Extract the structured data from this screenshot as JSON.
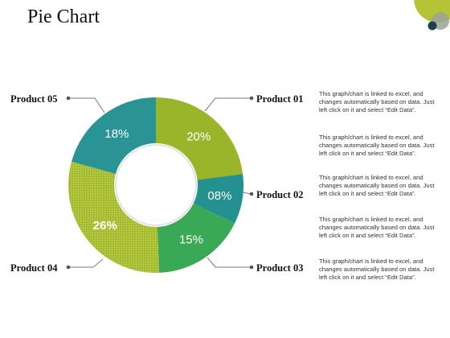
{
  "title": "Pie Chart",
  "chart_data": {
    "type": "pie",
    "variant": "donut",
    "categories": [
      "Product 01",
      "Product 02",
      "Product 03",
      "Product 04",
      "Product 05"
    ],
    "values": [
      20,
      8,
      15,
      26,
      18
    ],
    "value_labels": [
      "20%",
      "08%",
      "15%",
      "26%",
      "18%"
    ],
    "colors": [
      "#9bb52a",
      "#24908f",
      "#3aa956",
      "#a6ba2e",
      "#2a9494"
    ],
    "legend": "callouts"
  },
  "descriptions": [
    "This graph/chart is linked to excel, and changes automatically based on data. Just left click on it and select “Edit Data”.",
    "This graph/chart is linked to excel, and changes automatically based on data. Just left click on it and select “Edit Data”.",
    "This graph/chart is linked to excel, and changes automatically based on data. Just left click on it and select “Edit Data”.",
    "This graph/chart is linked to excel, and changes automatically based on data. Just left click on it and select “Edit Data”.",
    "This graph/chart is linked to excel, and changes automatically based on data. Just left click on it and select “Edit Data”."
  ],
  "theme": {
    "accent_green": "#b5c436",
    "accent_teal": "#24908f",
    "accent_dark": "#1f3f52"
  }
}
